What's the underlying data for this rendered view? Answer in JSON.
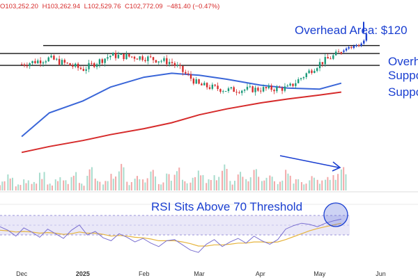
{
  "ohlc_header": {
    "open_label": "O",
    "open": "103,252.20",
    "high_label": "H",
    "high": "103,262.94",
    "low_label": "L",
    "low": "102,529.76",
    "close_label": "C",
    "close": "102,772.09",
    "change": "−481.40 (−0.47%)"
  },
  "annotations": {
    "overhead_area": "Overhead Area: $120",
    "overhead": "Overh",
    "support_upper": "Suppo",
    "support_lower": "Suppo",
    "rsi_note": "RSI Sits Above 70 Threshold"
  },
  "colors": {
    "annotation": "#1a3fd1",
    "sma_short": "#3a66d8",
    "sma_long": "#d62b2b",
    "candle_up": "#1a9a7a",
    "candle_down": "#d62b2b",
    "rsi_line": "#7a6fd0",
    "rsi_ma": "#e6b43c",
    "rsi_band": "#eae8f8"
  },
  "chart_data": [
    {
      "type": "line",
      "subtype": "candlestick",
      "title": "",
      "x_tick_labels": [
        "Dec",
        "2025",
        "Feb",
        "Mar",
        "Apr",
        "May",
        "Jun"
      ],
      "x": [
        "2024-12-01",
        "2024-12-15",
        "2025-01-01",
        "2025-01-15",
        "2025-02-01",
        "2025-02-15",
        "2025-03-01",
        "2025-03-15",
        "2025-04-01",
        "2025-04-15",
        "2025-05-01",
        "2025-05-12"
      ],
      "series": [
        {
          "values": [
            96500,
            99500,
            94000,
            101000,
            100000,
            97500,
            86000,
            83500,
            84000,
            84500,
            97000,
            102800
          ]
        },
        {
          "values": [
            60000,
            72000,
            78000,
            85000,
            90000,
            92000,
            91000,
            89000,
            86000,
            84500,
            84000,
            87000
          ]
        },
        {
          "values": [
            52000,
            55000,
            58000,
            61000,
            64000,
            67000,
            71000,
            74000,
            77000,
            79000,
            81000,
            82500
          ]
        }
      ],
      "horizontal_levels": [
        {
          "label": "Overh",
          "value": 106000
        },
        {
          "label": "Suppo",
          "value": 102000
        },
        {
          "label": "Suppo",
          "value": 96000
        }
      ],
      "last_high": 103262.94,
      "last_low": 102529.76,
      "last_close": 102772.09,
      "change": -481.4,
      "change_pct": -0.47
    },
    {
      "type": "bar",
      "title": "",
      "note": "volume",
      "categories_range": [
        "2024-11-20",
        "2025-05-12"
      ],
      "values_relative": [
        0.25,
        0.42,
        0.16,
        0.3,
        0.22,
        0.51,
        0.18,
        0.35,
        0.28,
        0.48,
        0.2,
        0.62,
        0.31,
        0.26,
        0.44,
        0.7,
        0.24,
        0.38,
        0.33,
        0.55,
        0.21,
        0.46,
        0.6,
        0.28,
        0.36,
        0.52,
        0.3,
        0.41,
        0.68,
        0.27,
        0.49,
        0.35,
        0.58,
        0.33,
        0.4,
        0.26,
        0.54,
        0.31,
        0.22,
        0.38,
        0.29,
        0.35,
        0.45,
        0.62
      ]
    },
    {
      "type": "line",
      "title": "",
      "note": "RSI panel",
      "ylim": [
        0,
        100
      ],
      "threshold": 70,
      "series": [
        {
          "values": [
            64,
            58,
            48,
            62,
            55,
            46,
            60,
            52,
            44,
            58,
            67,
            50,
            56,
            45,
            40,
            52,
            46,
            38,
            44,
            36,
            30,
            40,
            42,
            33,
            24,
            20,
            34,
            42,
            30,
            38,
            44,
            36,
            48,
            40,
            34,
            42,
            60,
            66,
            70,
            68,
            64,
            70,
            74,
            77
          ]
        },
        {
          "values": [
            58,
            57,
            55,
            56,
            55,
            53,
            54,
            53,
            51,
            52,
            55,
            53,
            53,
            51,
            48,
            49,
            48,
            46,
            45,
            43,
            40,
            40,
            40,
            38,
            35,
            31,
            31,
            33,
            33,
            34,
            36,
            36,
            38,
            38,
            37,
            38,
            42,
            47,
            52,
            57,
            61,
            64,
            67,
            70
          ]
        }
      ]
    }
  ]
}
